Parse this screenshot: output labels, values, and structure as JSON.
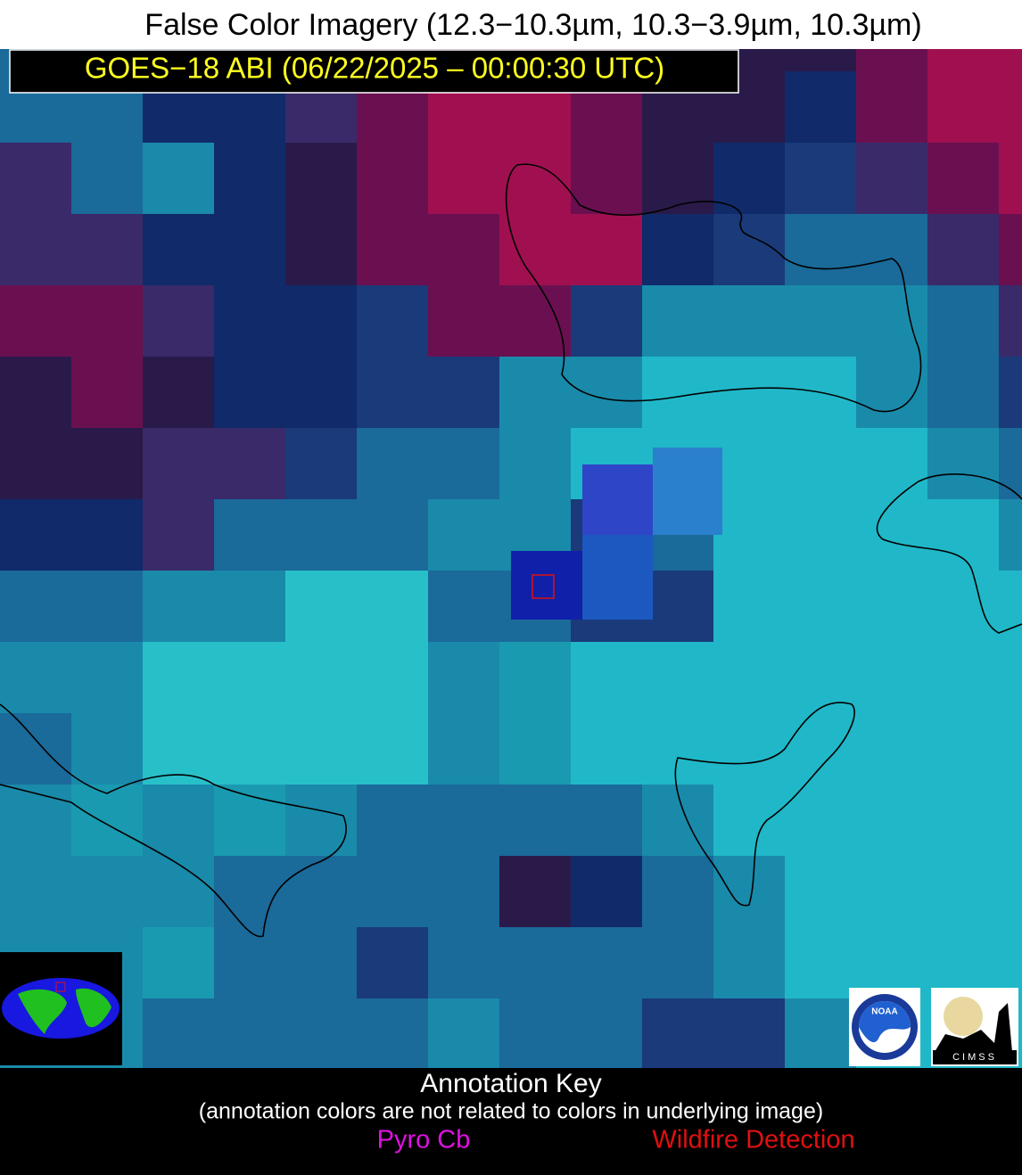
{
  "header": {
    "title": "False Color Imagery (12.3−10.3µm, 10.3−3.9µm, 10.3µm)",
    "subtitle": "GOES−18 ABI (06/22/2025 – 00:00:30 UTC)"
  },
  "annotation_key": {
    "title": "Annotation Key",
    "note": "(annotation colors are not related to colors in underlying image)",
    "items": [
      {
        "label": "Pyro Cb",
        "color": "#e010e0"
      },
      {
        "label": "Wildfire Detection",
        "color": "#e01010"
      }
    ]
  },
  "logos": {
    "noaa": "NOAA",
    "cimss": "CIMSS"
  }
}
